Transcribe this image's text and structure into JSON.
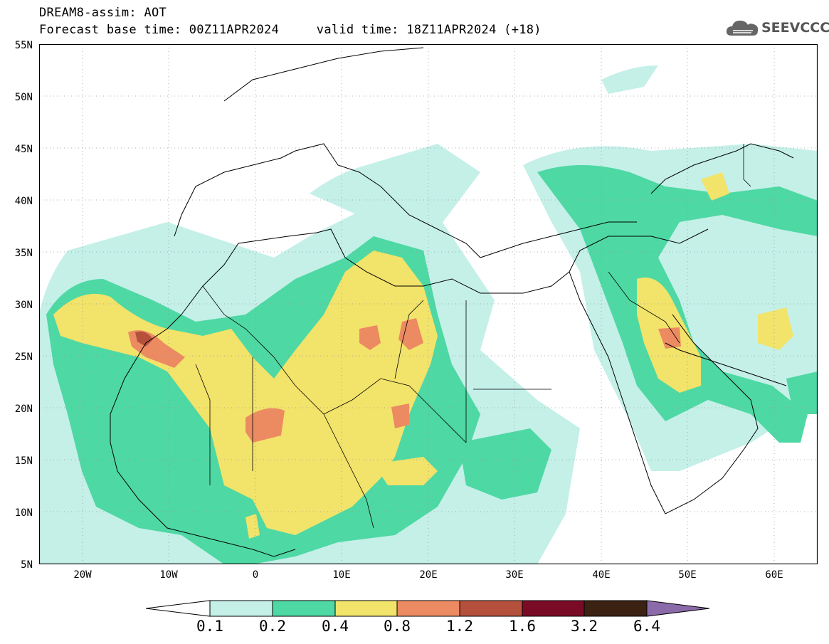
{
  "header": {
    "line1": "DREAM8-assim: AOT",
    "line2": "Forecast base time: 00Z11APR2024     valid time: 18Z11APR2024 (+18)"
  },
  "logo": {
    "text": "SEEVCCC",
    "icon": "cloud-icon"
  },
  "axes": {
    "lat_labels": [
      "55N",
      "50N",
      "45N",
      "40N",
      "35N",
      "30N",
      "25N",
      "20N",
      "15N",
      "10N",
      "5N"
    ],
    "lon_labels": [
      "20W",
      "10W",
      "0",
      "10E",
      "20E",
      "30E",
      "40E",
      "50E",
      "60E"
    ],
    "lat_range": [
      5,
      55
    ],
    "lon_range": [
      -25,
      65
    ]
  },
  "colorbar": {
    "levels": [
      "0.1",
      "0.2",
      "0.4",
      "0.8",
      "1.2",
      "1.6",
      "3.2",
      "6.4"
    ],
    "colors": [
      "#c4f0e8",
      "#4ed8a4",
      "#f2e36a",
      "#ec8a62",
      "#b5503c",
      "#7a0b26",
      "#3b2213",
      "#8a6aa8"
    ]
  }
}
